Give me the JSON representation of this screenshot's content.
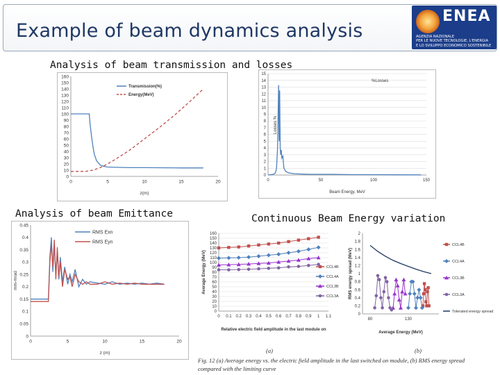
{
  "header": {
    "title": "Example of beam dynamics analysis",
    "logo": {
      "word": "ENEA",
      "subtitle": "AGENZIA NAZIONALE\nPER LE NUOVE TECNOLOGIE, L'ENERGIA\nE LO SVILUPPO ECONOMICO SOSTENIBILE"
    }
  },
  "sections": {
    "transmission": "Analysis of beam transmission and losses",
    "emittance": "Analysis of beam Emittance",
    "energy": "Continuous Beam Energy variation"
  },
  "caption": {
    "a": "(a)",
    "b": "(b)",
    "line1": "Fig. 12 (a) Average energy vs. the electric field amplitude in the last switched on module, (b) RMS energy spread",
    "line2": "compared with the limiting curve"
  },
  "chart_data": [
    {
      "type": "line",
      "xlabel": "z(m)",
      "ylabel": "",
      "xlim": [
        0,
        20
      ],
      "ylim": [
        0,
        160
      ],
      "xticks": [
        0,
        5,
        10,
        15,
        20
      ],
      "yticks": [
        0,
        10,
        20,
        30,
        40,
        50,
        60,
        70,
        80,
        90,
        100,
        110,
        120,
        130,
        140,
        150,
        160
      ],
      "series": [
        {
          "name": "Transmission(%)",
          "color": "#4f81bd",
          "x": [
            0,
            1,
            2.5,
            2.6,
            2.8,
            3,
            3.2,
            3.5,
            4,
            4.5,
            5,
            6,
            8,
            10,
            15,
            18
          ],
          "y": [
            100,
            100,
            100,
            85,
            65,
            48,
            35,
            25,
            18,
            16,
            15,
            14.5,
            14,
            14,
            13.5,
            13.5
          ]
        },
        {
          "name": "Energy(MeV)",
          "color": "#c0504d",
          "dashed": true,
          "x": [
            0,
            2,
            3,
            4,
            5,
            6,
            8,
            10,
            12,
            14,
            16,
            18
          ],
          "y": [
            8,
            8,
            10,
            14,
            20,
            27,
            42,
            60,
            78,
            97,
            118,
            140
          ]
        }
      ]
    },
    {
      "type": "line",
      "xlabel": "Beam Energy, MeV",
      "ylabel": "Losses %",
      "xlim": [
        0,
        150
      ],
      "ylim": [
        0,
        15
      ],
      "xticks": [
        0,
        50,
        100,
        150
      ],
      "yticks": [
        0,
        1,
        2,
        3,
        4,
        5,
        6,
        7,
        8,
        9,
        10,
        11,
        12,
        13,
        14,
        15
      ],
      "series": [
        {
          "name": "%Losses",
          "color": "#4f81bd",
          "x": [
            0,
            5,
            7,
            8,
            9,
            10,
            10.5,
            11,
            11.5,
            12,
            12.5,
            13,
            14,
            15,
            17,
            20,
            25,
            30,
            40,
            60,
            80,
            100,
            120,
            145
          ],
          "y": [
            0,
            0.1,
            0.3,
            1,
            4,
            13.3,
            5,
            12.5,
            4,
            3,
            3.7,
            2.5,
            2.8,
            1,
            0.5,
            0.3,
            0.2,
            0.15,
            0.1,
            0.1,
            0.05,
            0.05,
            0.03,
            0.02
          ]
        }
      ]
    },
    {
      "type": "line",
      "xlabel": "z (m)",
      "ylabel": "mm-mrad",
      "xlim": [
        0,
        20
      ],
      "ylim": [
        0,
        0.45
      ],
      "xticks": [
        0,
        5,
        10,
        15,
        20
      ],
      "yticks": [
        0,
        0.05,
        0.1,
        0.15,
        0.2,
        0.25,
        0.3,
        0.35,
        0.4,
        0.45
      ],
      "series": [
        {
          "name": "RMS Exn",
          "color": "#4f81bd",
          "x": [
            0,
            0.5,
            1,
            1.5,
            2,
            2.4,
            2.6,
            2.8,
            3,
            3.2,
            3.4,
            3.6,
            3.8,
            4,
            4.3,
            4.6,
            5,
            5.3,
            5.6,
            6,
            6.5,
            7,
            7.5,
            8,
            9,
            10,
            11,
            12,
            13,
            14,
            15,
            16,
            17,
            18
          ],
          "y": [
            0.15,
            0.15,
            0.15,
            0.15,
            0.15,
            0.15,
            0.32,
            0.4,
            0.26,
            0.37,
            0.25,
            0.34,
            0.23,
            0.32,
            0.22,
            0.28,
            0.21,
            0.25,
            0.22,
            0.27,
            0.2,
            0.23,
            0.21,
            0.22,
            0.215,
            0.21,
            0.22,
            0.21,
            0.215,
            0.21,
            0.215,
            0.21,
            0.215,
            0.21
          ]
        },
        {
          "name": "RMS Eyn",
          "color": "#c0504d",
          "x": [
            0,
            0.5,
            1,
            1.5,
            2,
            2.4,
            2.6,
            2.8,
            3,
            3.2,
            3.4,
            3.6,
            3.8,
            4,
            4.3,
            4.6,
            5,
            5.3,
            5.6,
            6,
            6.5,
            7,
            7.5,
            8,
            9,
            10,
            11,
            12,
            13,
            14,
            15,
            16,
            17,
            18
          ],
          "y": [
            0.14,
            0.14,
            0.14,
            0.14,
            0.14,
            0.14,
            0.3,
            0.37,
            0.28,
            0.39,
            0.23,
            0.36,
            0.24,
            0.3,
            0.2,
            0.27,
            0.23,
            0.24,
            0.2,
            0.25,
            0.22,
            0.21,
            0.22,
            0.21,
            0.21,
            0.22,
            0.21,
            0.215,
            0.21,
            0.215,
            0.21,
            0.21,
            0.21,
            0.21
          ]
        }
      ]
    },
    {
      "type": "line",
      "xlabel": "Relative electric field amplitude in the last module on",
      "ylabel": "Average Energy (MeV)",
      "xlim": [
        0,
        1.1
      ],
      "ylim": [
        0,
        160
      ],
      "xticks": [
        0,
        0.1,
        0.2,
        0.3,
        0.4,
        0.5,
        0.6,
        0.7,
        0.8,
        0.9,
        1,
        1.1
      ],
      "yticks": [
        0,
        10,
        20,
        30,
        40,
        50,
        60,
        70,
        80,
        90,
        100,
        110,
        120,
        130,
        140,
        150,
        160
      ],
      "series": [
        {
          "name": "CCL4B",
          "color": "#c0504d",
          "marker": "square",
          "x": [
            0,
            0.1,
            0.2,
            0.3,
            0.4,
            0.5,
            0.6,
            0.7,
            0.8,
            0.9,
            1
          ],
          "y": [
            130,
            131,
            132,
            134,
            136,
            138,
            140,
            143,
            146,
            149,
            152
          ]
        },
        {
          "name": "CCL4A",
          "color": "#4f81bd",
          "marker": "diamond",
          "x": [
            0,
            0.1,
            0.2,
            0.3,
            0.4,
            0.5,
            0.6,
            0.7,
            0.8,
            0.9,
            1
          ],
          "y": [
            109,
            109.5,
            110,
            111,
            113,
            115,
            117,
            120,
            123,
            127,
            131
          ]
        },
        {
          "name": "CCL3B",
          "color": "#9933cc",
          "marker": "triangle",
          "x": [
            0,
            0.1,
            0.2,
            0.3,
            0.4,
            0.5,
            0.6,
            0.7,
            0.8,
            0.9,
            1
          ],
          "y": [
            95,
            95.5,
            96,
            97,
            98,
            99,
            101,
            103,
            105,
            108,
            110
          ]
        },
        {
          "name": "CCL3A",
          "color": "#8064a2",
          "marker": "circle",
          "x": [
            0,
            0.1,
            0.2,
            0.3,
            0.4,
            0.5,
            0.6,
            0.7,
            0.8,
            0.9,
            1
          ],
          "y": [
            85,
            85,
            85.5,
            86,
            87,
            88,
            89,
            91,
            92,
            94,
            96
          ]
        }
      ]
    },
    {
      "type": "line",
      "xlabel": "Average Energy (MeV)",
      "ylabel": "RMS energy spread (MeV)",
      "xlim": [
        70,
        170
      ],
      "ylim": [
        0,
        2
      ],
      "xticks": [
        80,
        130
      ],
      "yticks": [
        0,
        0.2,
        0.4,
        0.6,
        0.8,
        1,
        1.2,
        1.4,
        1.6,
        1.8,
        2
      ],
      "series": [
        {
          "name": "CCL4B",
          "color": "#c0504d",
          "marker": "square",
          "x": [
            149,
            150,
            151,
            152,
            153,
            154,
            155,
            156,
            157
          ],
          "y": [
            0.2,
            0.5,
            0.75,
            0.6,
            0.3,
            0.2,
            0.55,
            0.65,
            0.2
          ]
        },
        {
          "name": "CCL4A",
          "color": "#4f81bd",
          "marker": "diamond",
          "x": [
            130,
            132,
            134,
            136,
            138,
            140,
            142,
            144,
            146,
            148
          ],
          "y": [
            0.15,
            0.5,
            0.8,
            0.8,
            0.5,
            0.15,
            0.4,
            0.6,
            0.4,
            0.15
          ]
        },
        {
          "name": "CCL3B",
          "color": "#9933cc",
          "marker": "triangle",
          "x": [
            110,
            112,
            114,
            116,
            118,
            120,
            122,
            124,
            126
          ],
          "y": [
            0.15,
            0.5,
            0.85,
            0.7,
            0.35,
            0.15,
            0.55,
            0.85,
            0.5
          ]
        },
        {
          "name": "CCL3A",
          "color": "#8064a2",
          "marker": "circle",
          "x": [
            86,
            88,
            90,
            92,
            94,
            96,
            98,
            100,
            102,
            104,
            106,
            108
          ],
          "y": [
            0.15,
            0.45,
            0.95,
            0.85,
            0.4,
            0.15,
            0.55,
            0.9,
            0.8,
            0.4,
            0.15,
            0.1
          ]
        },
        {
          "name": "Tolerated energy spread",
          "color": "#1f3864",
          "x": [
            80,
            90,
            100,
            110,
            120,
            130,
            140,
            150,
            160
          ],
          "y": [
            1.7,
            1.55,
            1.43,
            1.33,
            1.25,
            1.18,
            1.11,
            1.05,
            1.0
          ]
        }
      ]
    }
  ]
}
